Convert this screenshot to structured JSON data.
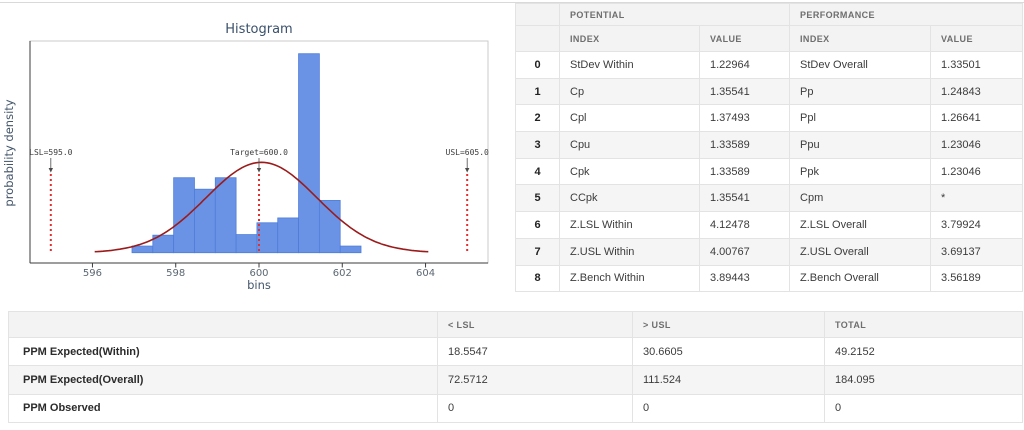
{
  "chart_data": {
    "type": "bar",
    "subtype": "histogram-with-normal-curve",
    "title": "Histogram",
    "xlabel": "bins",
    "ylabel": "probability density",
    "xlim": [
      594.5,
      605.5
    ],
    "ylim": [
      -0.034,
      0.7
    ],
    "x_ticks": [
      596,
      598,
      600,
      602,
      604
    ],
    "grid": false,
    "legend": "none",
    "bin_start": 596.95,
    "bin_width": 0.5,
    "densities": [
      0.022,
      0.058,
      0.248,
      0.21,
      0.248,
      0.06,
      0.099,
      0.115,
      0.658,
      0.173,
      0.022
    ],
    "bar_color": "#6a93e6",
    "bar_edge_color": "#4d7dd8",
    "curve": {
      "mean": 600.06,
      "sigma": 1.335,
      "span_sigmas": 3,
      "color": "#9b1b1b"
    },
    "spec_lines": [
      {
        "label": "LSL=595.0",
        "x": 595.0
      },
      {
        "label": "Target=600.0",
        "x": 600.0
      },
      {
        "label": "USL=605.0",
        "x": 605.0
      }
    ],
    "spec_line_color": "#e82c2c"
  },
  "capability_table": {
    "group_headers": {
      "blank": "",
      "potential": "POTENTIAL",
      "performance": "PERFORMANCE"
    },
    "sub_headers": {
      "blank": "",
      "index1": "INDEX",
      "value1": "VALUE",
      "index2": "INDEX",
      "value2": "VALUE"
    },
    "rows": [
      [
        "0",
        "StDev Within",
        "1.22964",
        "StDev Overall",
        "1.33501"
      ],
      [
        "1",
        "Cp",
        "1.35541",
        "Pp",
        "1.24843"
      ],
      [
        "2",
        "Cpl",
        "1.37493",
        "Ppl",
        "1.26641"
      ],
      [
        "3",
        "Cpu",
        "1.33589",
        "Ppu",
        "1.23046"
      ],
      [
        "4",
        "Cpk",
        "1.33589",
        "Ppk",
        "1.23046"
      ],
      [
        "5",
        "CCpk",
        "1.35541",
        "Cpm",
        "*"
      ],
      [
        "6",
        "Z.LSL Within",
        "4.12478",
        "Z.LSL Overall",
        "3.79924"
      ],
      [
        "7",
        "Z.USL Within",
        "4.00767",
        "Z.USL Overall",
        "3.69137"
      ],
      [
        "8",
        "Z.Bench Within",
        "3.89443",
        "Z.Bench Overall",
        "3.56189"
      ]
    ]
  },
  "ppm_table": {
    "headers": {
      "blank": "",
      "lsl": "< LSL",
      "usl": "> USL",
      "total": "TOTAL"
    },
    "rows": [
      [
        "PPM Expected(Within)",
        "18.5547",
        "30.6605",
        "49.2152"
      ],
      [
        "PPM Expected(Overall)",
        "72.5712",
        "111.524",
        "184.095"
      ],
      [
        "PPM Observed",
        "0",
        "0",
        "0"
      ]
    ]
  }
}
